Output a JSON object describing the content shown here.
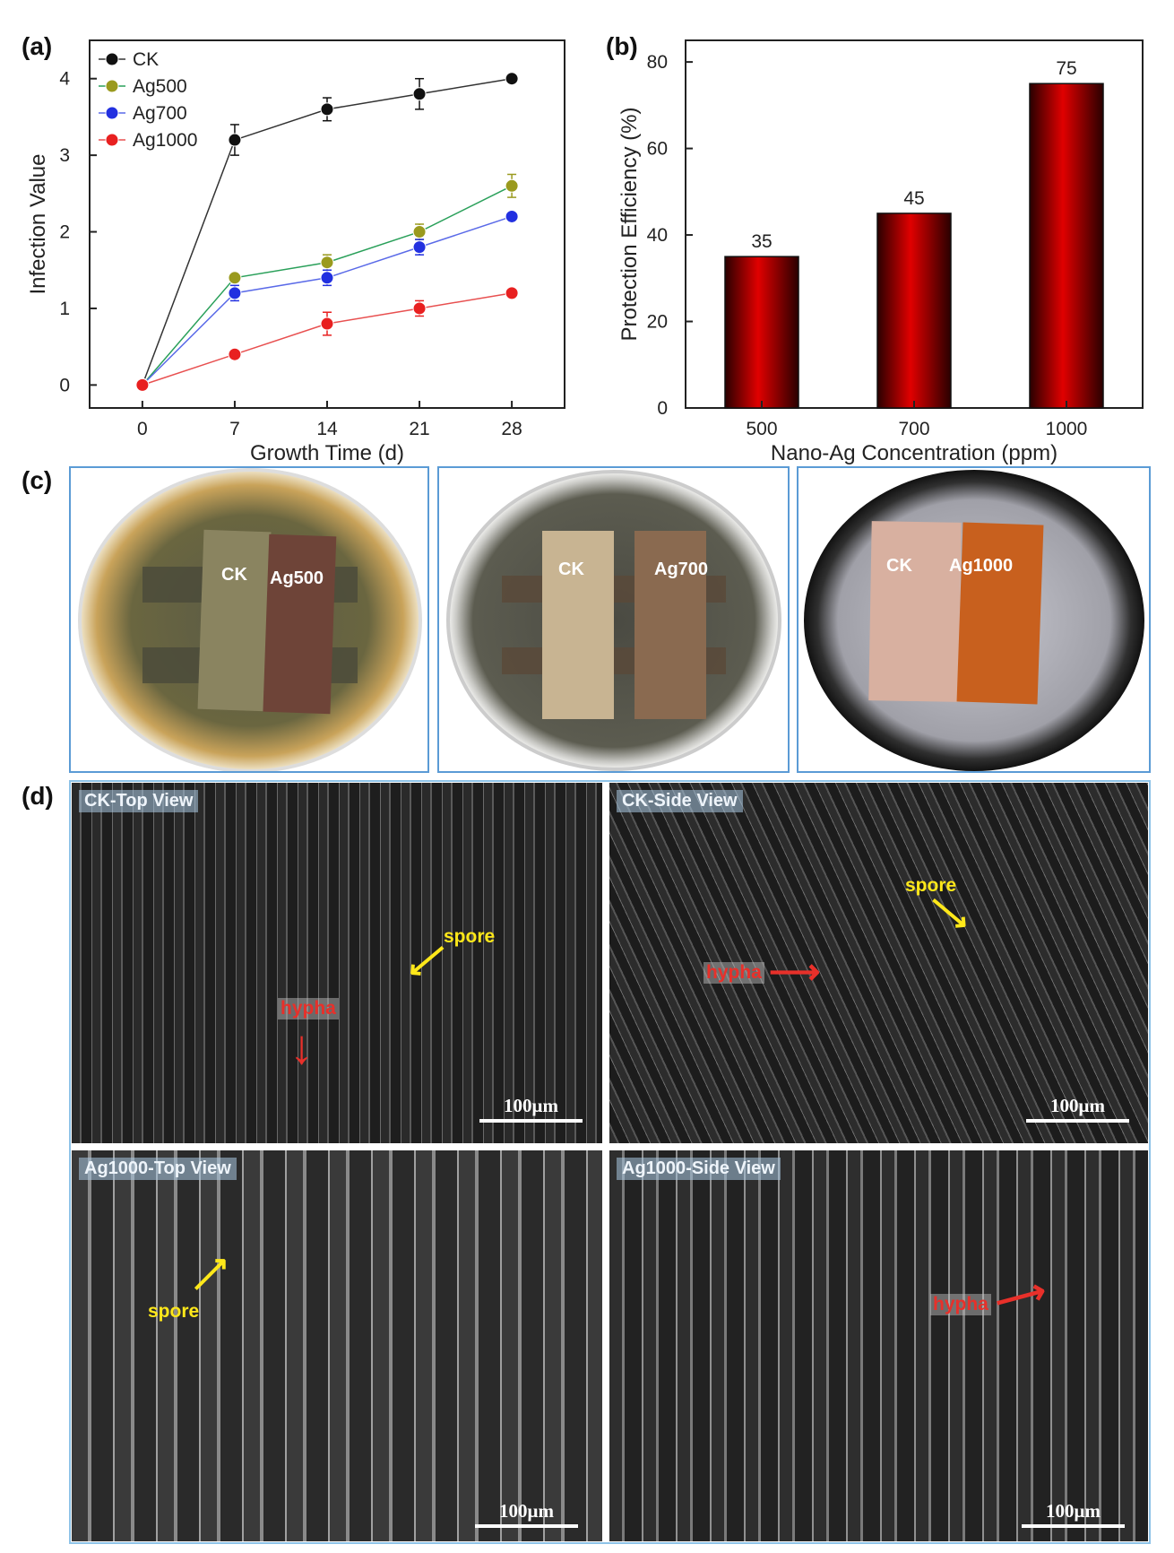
{
  "panels": {
    "a": "(a)",
    "b": "(b)",
    "c": "(c)",
    "d": "(d)"
  },
  "chart_data": [
    {
      "type": "line",
      "x": [
        0,
        7,
        14,
        21,
        28
      ],
      "xlabel": "Growth Time (d)",
      "ylabel": "Infection Value",
      "xlim": [
        -4,
        32
      ],
      "ylim": [
        -0.3,
        4.5
      ],
      "xticks": [
        0,
        7,
        14,
        21,
        28
      ],
      "yticks": [
        0,
        1,
        2,
        3,
        4
      ],
      "legend_position": "top-left",
      "series": [
        {
          "name": "CK",
          "color": "#111111",
          "line_color": "#333333",
          "values": [
            0,
            3.2,
            3.6,
            3.8,
            4.0
          ],
          "errors": [
            0,
            0.2,
            0.15,
            0.2,
            0.05
          ]
        },
        {
          "name": "Ag500",
          "color": "#9a9a1e",
          "line_color": "#2aa05a",
          "values": [
            0,
            1.4,
            1.6,
            2.0,
            2.6
          ],
          "errors": [
            0,
            0.05,
            0.1,
            0.1,
            0.15
          ]
        },
        {
          "name": "Ag700",
          "color": "#2230e0",
          "line_color": "#5a6ae8",
          "values": [
            0,
            1.2,
            1.4,
            1.8,
            2.2
          ],
          "errors": [
            0,
            0.1,
            0.1,
            0.1,
            0.05
          ]
        },
        {
          "name": "Ag1000",
          "color": "#e82020",
          "line_color": "#e85050",
          "values": [
            0,
            0.4,
            0.8,
            1.0,
            1.2
          ],
          "errors": [
            0,
            0.05,
            0.15,
            0.1,
            0.05
          ]
        }
      ]
    },
    {
      "type": "bar",
      "categories": [
        "500",
        "700",
        "1000"
      ],
      "values": [
        35,
        45,
        75
      ],
      "data_labels": [
        "35",
        "45",
        "75"
      ],
      "xlabel": "Nano-Ag Concentration (ppm)",
      "ylabel": "Protection Efficiency (%)",
      "ylim": [
        0,
        85
      ],
      "yticks": [
        0,
        20,
        40,
        60,
        80
      ],
      "bar_color": "#e00000"
    }
  ],
  "photos": [
    {
      "labels": [
        "CK",
        "Ag500"
      ]
    },
    {
      "labels": [
        "CK",
        "Ag700"
      ]
    },
    {
      "labels": [
        "CK",
        "Ag1000"
      ]
    }
  ],
  "sem": [
    {
      "title": "CK-Top View",
      "scale": "100μm",
      "annotations": {
        "spore": "spore",
        "hypha": "hypha"
      }
    },
    {
      "title": "CK-Side View",
      "scale": "100μm",
      "annotations": {
        "spore": "spore",
        "hypha": "hypha"
      }
    },
    {
      "title": "Ag1000-Top View",
      "scale": "100μm",
      "annotations": {
        "spore": "spore"
      }
    },
    {
      "title": "Ag1000-Side View",
      "scale": "100μm",
      "annotations": {
        "hypha": "hypha"
      }
    }
  ]
}
